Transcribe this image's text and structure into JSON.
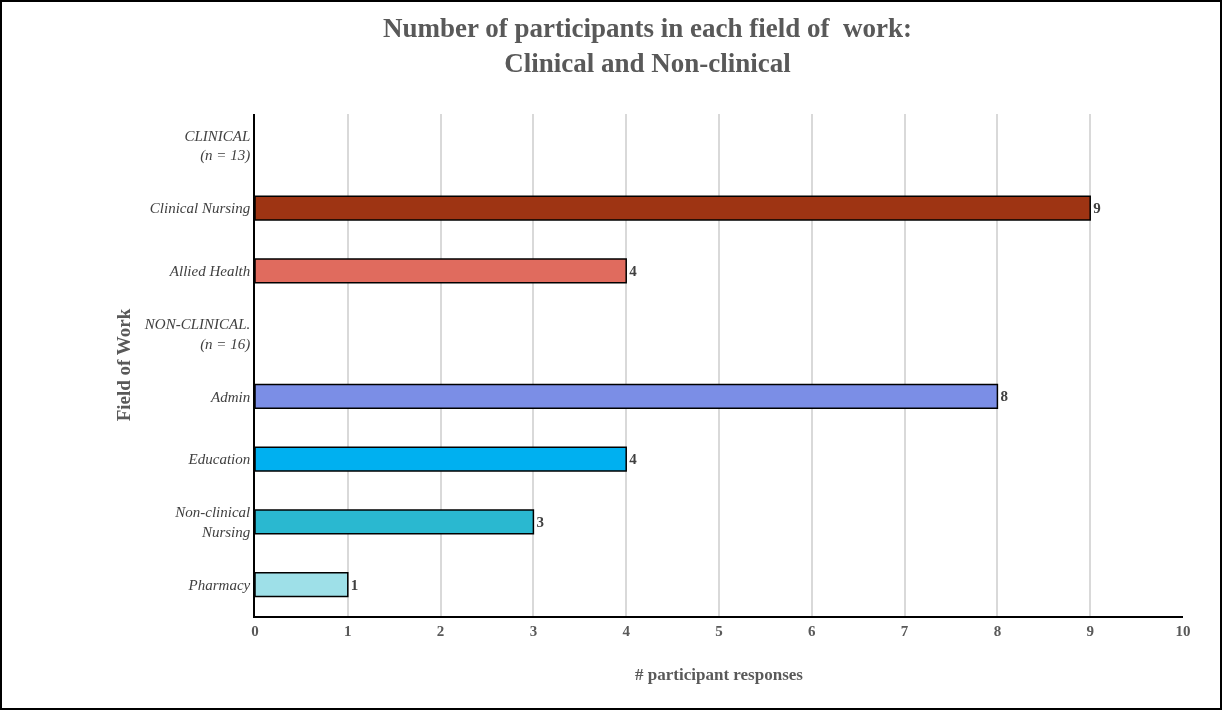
{
  "chart_data": {
    "type": "bar",
    "orientation": "horizontal",
    "title": "Number of participants in each field of  work: Clinical and Non-clinical",
    "categories": [
      "CLINICAL (n = 13)",
      "Clinical Nursing",
      "Allied Health",
      "NON-CLINICAL. (n = 16)",
      "Admin",
      "Education",
      "Non-clinical Nursing",
      "Pharmacy"
    ],
    "values": [
      null,
      9,
      4,
      null,
      8,
      4,
      3,
      1
    ],
    "colors": [
      "#9e3413",
      "#9e3413",
      "#e06b5e",
      "#7b8ee6",
      "#7b8ee6",
      "#00b0f0",
      "#2ab8d0",
      "#9ee0e8"
    ],
    "xlim": [
      0,
      10
    ],
    "xticks": [
      0,
      1,
      2,
      3,
      4,
      5,
      6,
      7,
      8,
      9,
      10
    ],
    "xlabel": "# participant responses",
    "ylabel": "Field of Work",
    "grid": "x",
    "data_labels": true
  }
}
